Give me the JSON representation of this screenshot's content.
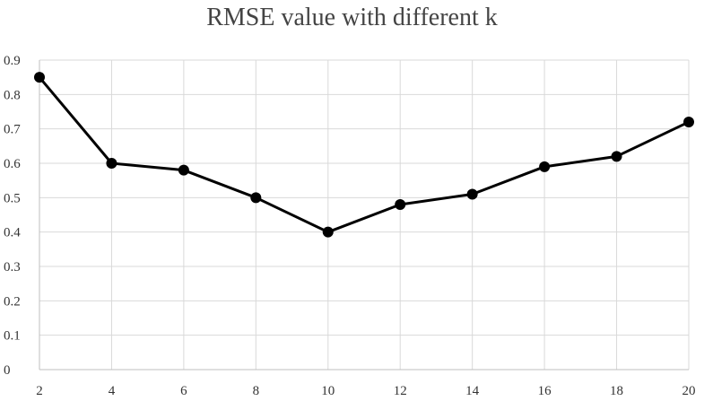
{
  "chart_data": {
    "type": "line",
    "title": "RMSE value with different k",
    "xlabel": "",
    "ylabel": "",
    "x": [
      2,
      4,
      6,
      8,
      10,
      12,
      14,
      16,
      18,
      20
    ],
    "series": [
      {
        "values": [
          0.85,
          0.6,
          0.58,
          0.5,
          0.4,
          0.48,
          0.51,
          0.59,
          0.62,
          0.72
        ]
      }
    ],
    "xlim": [
      2,
      20
    ],
    "ylim": [
      0,
      0.9
    ],
    "x_ticks": [
      "2",
      "4",
      "6",
      "8",
      "10",
      "12",
      "14",
      "16",
      "18",
      "20"
    ],
    "y_ticks": [
      "0",
      "0.1",
      "0.2",
      "0.3",
      "0.4",
      "0.5",
      "0.6",
      "0.7",
      "0.8",
      "0.9"
    ],
    "grid": true,
    "legend": "none",
    "colors": {
      "line": "#000000",
      "marker": "#000000",
      "grid": "#d9d9d9",
      "axis": "#bfbfbf"
    }
  }
}
